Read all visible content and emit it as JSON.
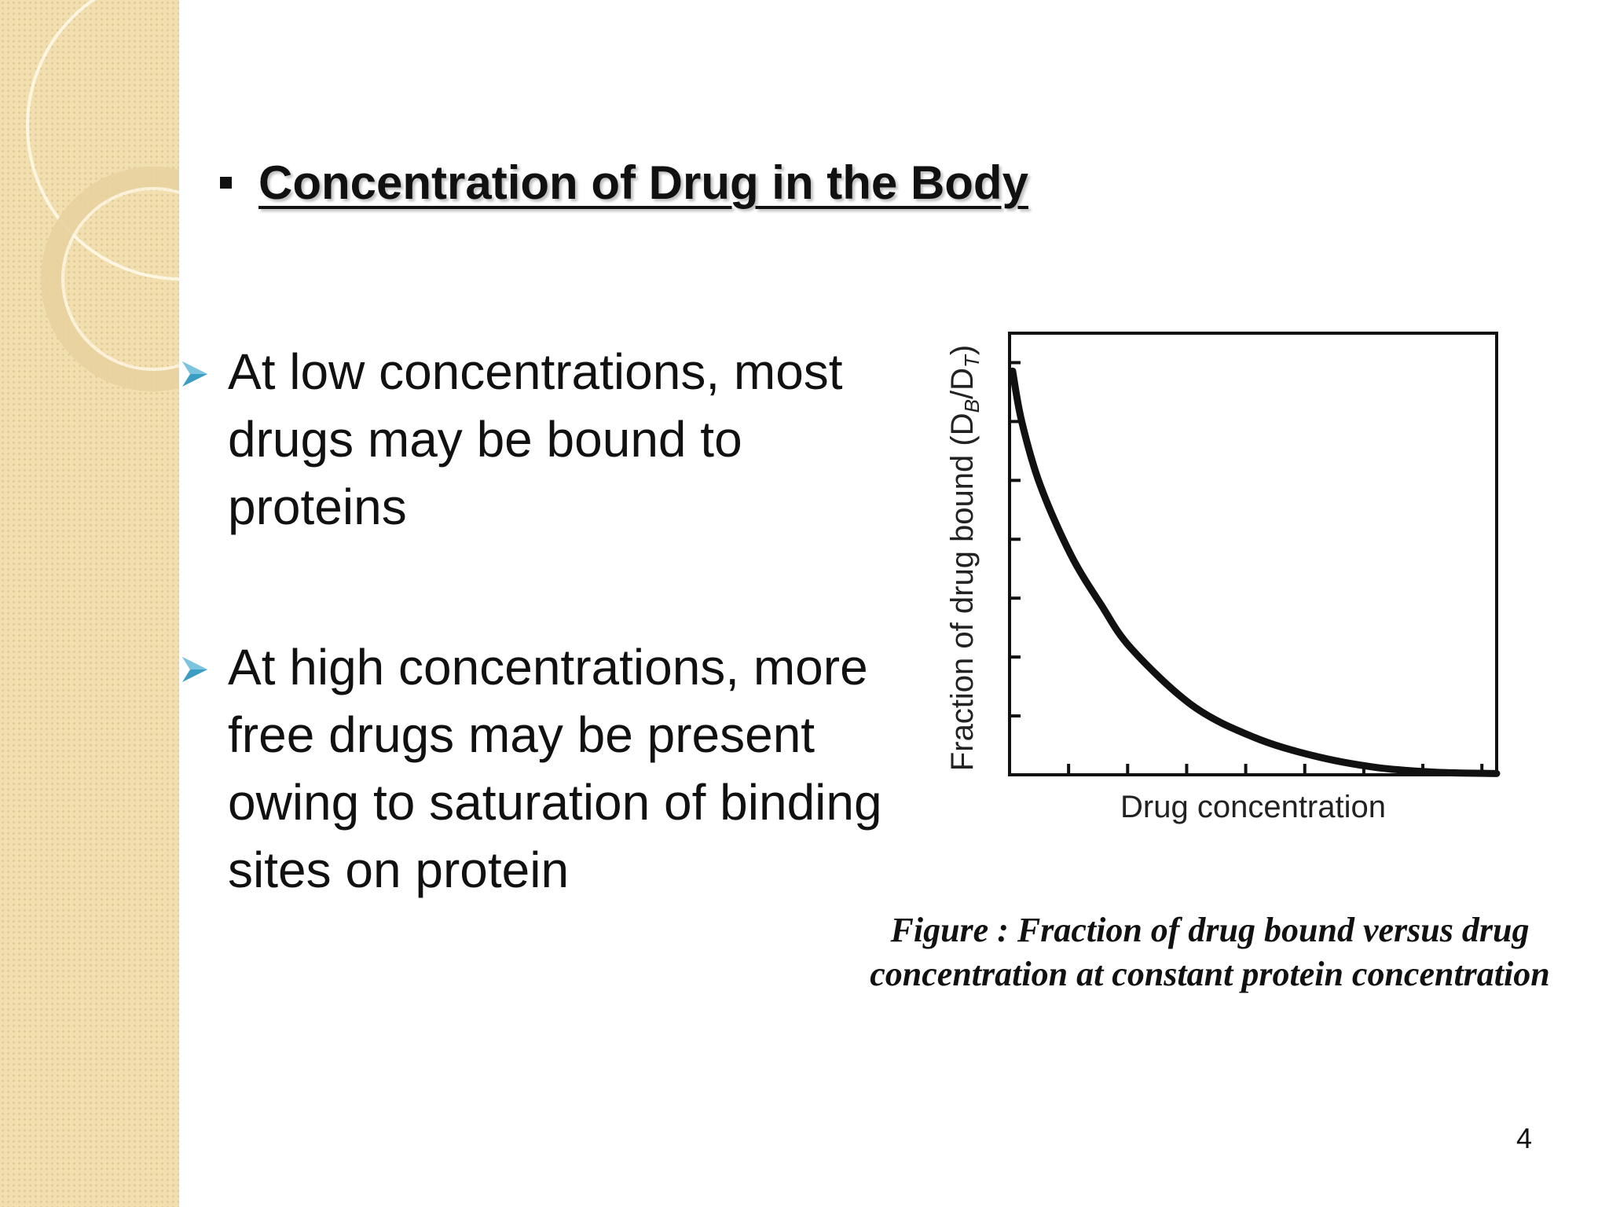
{
  "slide": {
    "title": "Concentration of Drug in the Body",
    "bullets": [
      {
        "text": "At low concentrations, most drugs may be bound to proteins"
      },
      {
        "text": "At high concentrations, more free drugs may be present owing to saturation of binding sites on protein"
      }
    ],
    "caption_line1": "Figure : Fraction of drug bound versus drug",
    "caption_line2": "concentration at constant protein concentration",
    "page_number": "4",
    "colors": {
      "arrow": "#3a9ec2",
      "panel": "#f2dfb0"
    }
  },
  "chart_data": {
    "type": "line",
    "title": "",
    "xlabel": "Drug concentration",
    "ylabel": "Fraction of drug bound (D",
    "ylabel_sub1": "B",
    "ylabel_mid": "/D",
    "ylabel_sub2": "T",
    "ylabel_end": ")",
    "xlim": [
      0,
      8
    ],
    "ylim": [
      0,
      7
    ],
    "x_tick_count": 8,
    "y_tick_count": 7,
    "grid": false,
    "series": [
      {
        "x": [
          0.05,
          0.2,
          0.5,
          1.0,
          1.5,
          2.0,
          3.0,
          4.0,
          5.0,
          6.0,
          7.0,
          8.0
        ],
        "y": [
          6.4,
          5.6,
          4.6,
          3.5,
          2.7,
          2.0,
          1.1,
          0.6,
          0.3,
          0.12,
          0.04,
          0.02
        ]
      }
    ]
  }
}
